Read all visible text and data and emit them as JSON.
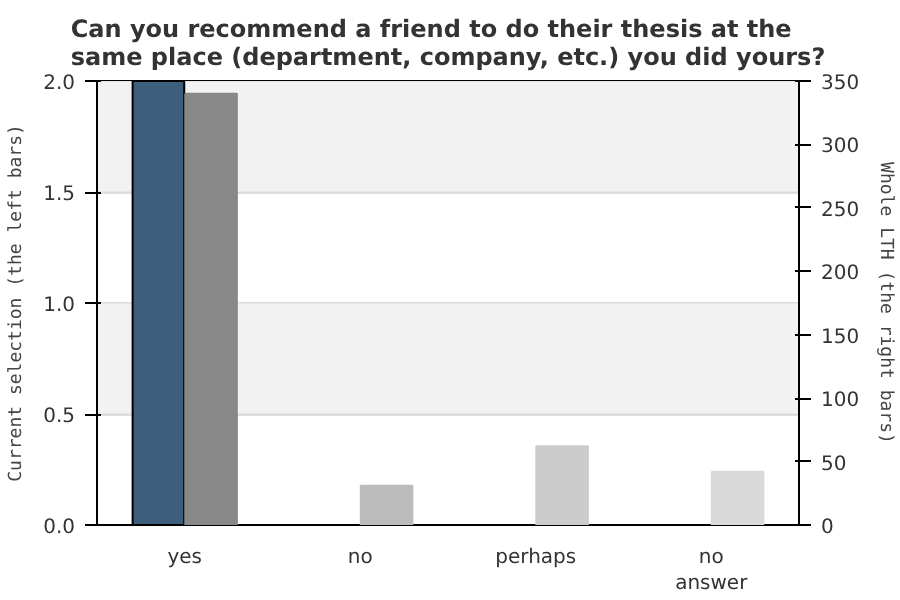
{
  "chart_data": {
    "type": "bar",
    "title": "Can you recommend a friend to do their thesis at the same place (department, company, etc.) you did yours?",
    "categories": [
      "yes",
      "no",
      "perhaps",
      "no answer"
    ],
    "series": [
      {
        "color": "#3d5f7c",
        "values": [
          2.0,
          null,
          null,
          null
        ]
      },
      {
        "axis": "y2",
        "colors": [
          "#888888",
          "#bbbbbb",
          "#cccccc",
          "#d9d9d9"
        ],
        "values": [
          340,
          31,
          62,
          42
        ]
      }
    ],
    "ylabel": "Current selection (the left bars)",
    "y2label": "Whole LTH (the right bars)",
    "ylim": [
      0,
      2.0
    ],
    "yticks": [
      {
        "value": 0,
        "label": "0.0"
      },
      {
        "value": 0.5,
        "label": "0.5"
      },
      {
        "value": 1.0,
        "label": "1.0"
      },
      {
        "value": 1.5,
        "label": "1.5"
      },
      {
        "value": 2.0,
        "label": "2.0"
      }
    ],
    "y2lim": [
      0,
      350
    ],
    "y2ticks": [
      0,
      50,
      100,
      150,
      200,
      250,
      300,
      350
    ],
    "bands": [
      {
        "axis": "y",
        "from": 0.5,
        "to": 1.0,
        "color": "#f2f2f2"
      },
      {
        "axis": "y",
        "from": 1.5,
        "to": 2.0,
        "color": "#f2f2f2"
      }
    ],
    "grid": "y",
    "legend": false
  }
}
